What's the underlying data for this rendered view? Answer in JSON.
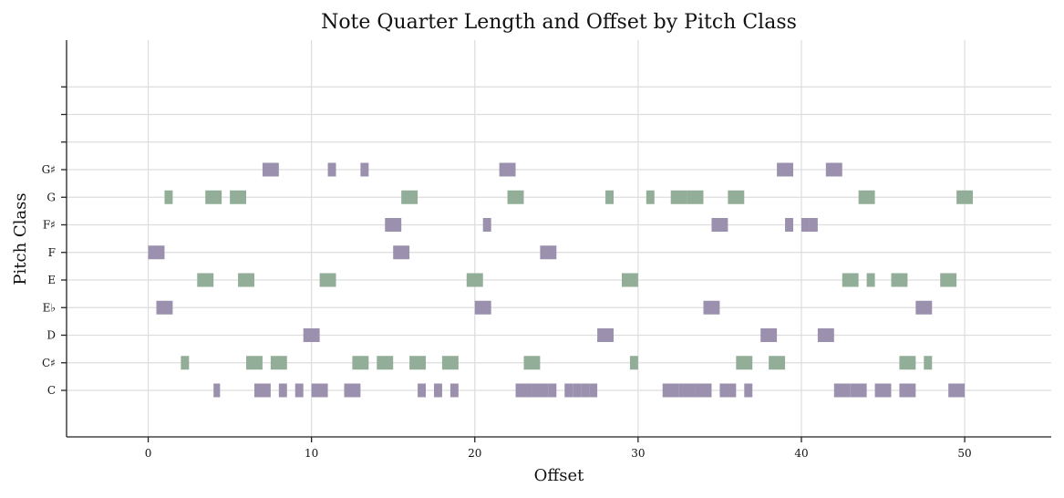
{
  "chart_data": {
    "type": "bar",
    "subtype": "horizontal-broken-bar",
    "title": "Note Quarter Length and Offset by Pitch Class",
    "xlabel": "Offset",
    "ylabel": "Pitch Class",
    "xlim": [
      -5,
      55.3
    ],
    "xticks": [
      "0",
      "10",
      "20",
      "30",
      "40",
      "50"
    ],
    "grid": true,
    "colors": {
      "purple": "#9b90ae",
      "green": "#93ae98"
    },
    "rows": [
      {
        "label": "C",
        "color": "purple",
        "notes": [
          [
            4,
            0.4
          ],
          [
            6.5,
            1
          ],
          [
            8,
            0.5
          ],
          [
            9,
            0.5
          ],
          [
            10,
            1
          ],
          [
            12,
            1
          ],
          [
            16.5,
            0.5
          ],
          [
            17.5,
            0.5
          ],
          [
            18.5,
            0.5
          ],
          [
            22.5,
            1
          ],
          [
            23.5,
            1
          ],
          [
            24.5,
            0.5
          ],
          [
            25.5,
            0.5
          ],
          [
            26,
            0.5
          ],
          [
            26.5,
            0.5
          ],
          [
            27,
            0.5
          ],
          [
            31.5,
            1
          ],
          [
            32.5,
            1
          ],
          [
            33.5,
            1
          ],
          [
            35,
            1
          ],
          [
            36.5,
            0.5
          ],
          [
            42,
            1
          ],
          [
            43,
            1
          ],
          [
            44.5,
            1
          ],
          [
            46,
            1
          ],
          [
            49,
            1
          ]
        ]
      },
      {
        "label": "C♯",
        "color": "green",
        "notes": [
          [
            2,
            0.5
          ],
          [
            6,
            1
          ],
          [
            7.5,
            1
          ],
          [
            12.5,
            1
          ],
          [
            14,
            1
          ],
          [
            16,
            1
          ],
          [
            18,
            1
          ],
          [
            23,
            1
          ],
          [
            29.5,
            0.5
          ],
          [
            36,
            1
          ],
          [
            38,
            1
          ],
          [
            46,
            1
          ],
          [
            47.5,
            0.5
          ]
        ]
      },
      {
        "label": "D",
        "color": "purple",
        "notes": [
          [
            9.5,
            1
          ],
          [
            27.5,
            1
          ],
          [
            37.5,
            1
          ],
          [
            41,
            1
          ]
        ]
      },
      {
        "label": "E♭",
        "color": "purple",
        "notes": [
          [
            0.5,
            1
          ],
          [
            20,
            1
          ],
          [
            34,
            1
          ],
          [
            47,
            1
          ]
        ]
      },
      {
        "label": "E",
        "color": "green",
        "notes": [
          [
            3,
            1
          ],
          [
            5.5,
            1
          ],
          [
            10.5,
            1
          ],
          [
            19.5,
            1
          ],
          [
            29,
            1
          ],
          [
            42.5,
            1
          ],
          [
            44,
            0.5
          ],
          [
            45.5,
            1
          ],
          [
            48.5,
            1
          ]
        ]
      },
      {
        "label": "F",
        "color": "purple",
        "notes": [
          [
            0,
            1
          ],
          [
            15,
            1
          ],
          [
            24,
            1
          ]
        ]
      },
      {
        "label": "F♯",
        "color": "purple",
        "notes": [
          [
            14.5,
            1
          ],
          [
            20.5,
            0.5
          ],
          [
            34.5,
            1
          ],
          [
            39,
            0.5
          ],
          [
            40,
            0.5
          ],
          [
            40.5,
            0.5
          ]
        ]
      },
      {
        "label": "G",
        "color": "green",
        "notes": [
          [
            1,
            0.5
          ],
          [
            3.5,
            1
          ],
          [
            5,
            1
          ],
          [
            15.5,
            1
          ],
          [
            22,
            1
          ],
          [
            28,
            0.5
          ],
          [
            30.5,
            0.5
          ],
          [
            32,
            1
          ],
          [
            33,
            1
          ],
          [
            35.5,
            1
          ],
          [
            43.5,
            1
          ],
          [
            49.5,
            1
          ]
        ]
      },
      {
        "label": "G♯",
        "color": "purple",
        "notes": [
          [
            7,
            1
          ],
          [
            11,
            0.5
          ],
          [
            13,
            0.5
          ],
          [
            21.5,
            1
          ],
          [
            38.5,
            1
          ],
          [
            41.5,
            1
          ]
        ]
      },
      {
        "label": "",
        "color": "purple",
        "notes": []
      },
      {
        "label": "",
        "color": "purple",
        "notes": []
      },
      {
        "label": "",
        "color": "purple",
        "notes": []
      }
    ]
  }
}
